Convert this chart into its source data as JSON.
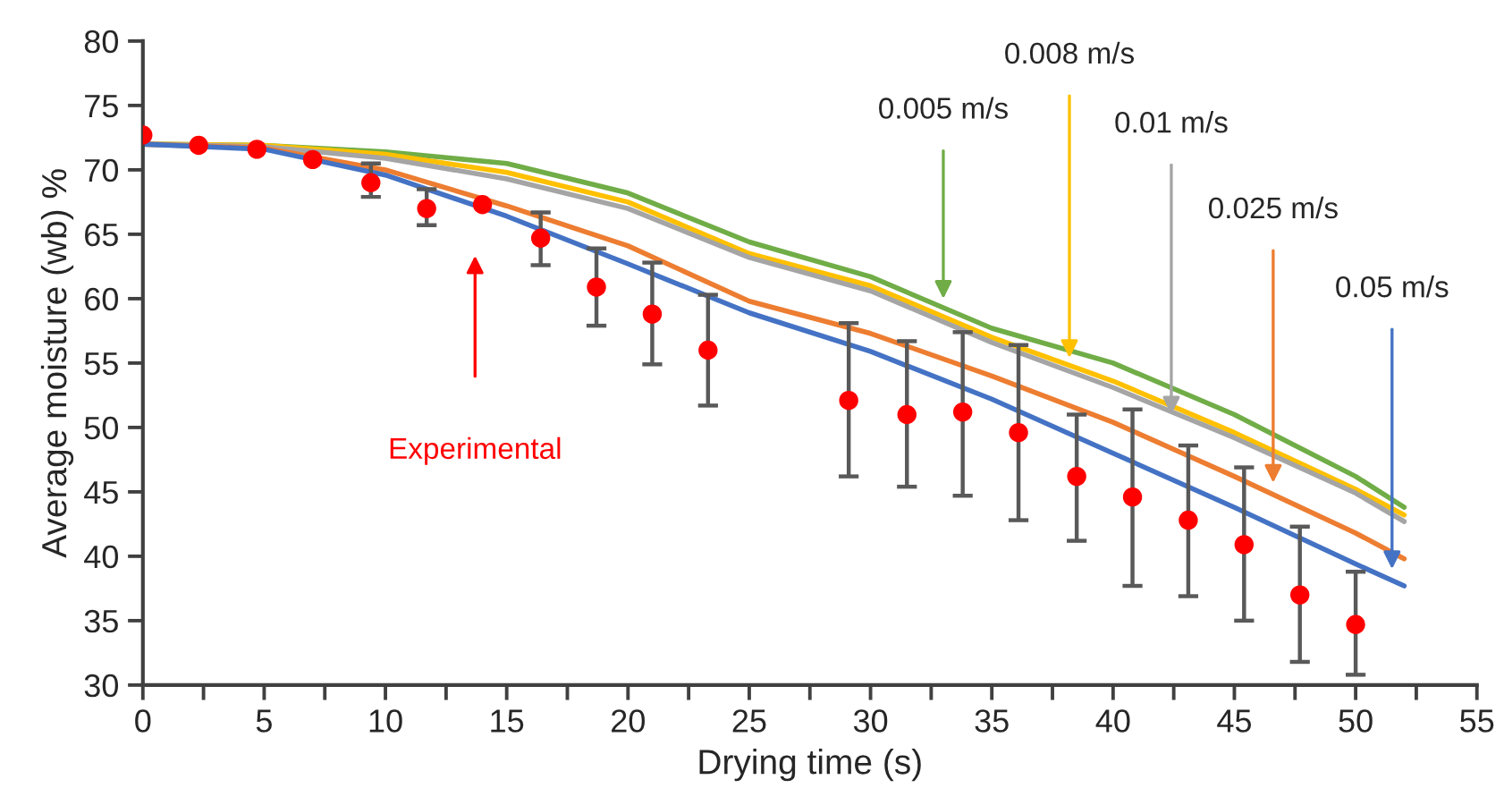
{
  "chart_data": {
    "type": "line",
    "xlabel": "Drying time (s)",
    "ylabel": "Average moisture (wb) %",
    "xlim": [
      0,
      55
    ],
    "ylim": [
      30,
      80
    ],
    "xticks": [
      0,
      {
        "value": 2.5,
        "label": null
      },
      5,
      {
        "value": 7.5,
        "label": null
      },
      10,
      {
        "value": 12.5,
        "label": null
      },
      15,
      {
        "value": 17.5,
        "label": null
      },
      20,
      {
        "value": 22.5,
        "label": null
      },
      25,
      {
        "value": 27.5,
        "label": null
      },
      30,
      {
        "value": 32.5,
        "label": null
      },
      35,
      {
        "value": 37.5,
        "label": null
      },
      40,
      {
        "value": 42.5,
        "label": null
      },
      45,
      {
        "value": 47.5,
        "label": null
      },
      50,
      {
        "value": 52.5,
        "label": null
      },
      55
    ],
    "yticks": [
      30,
      35,
      40,
      45,
      50,
      55,
      60,
      65,
      70,
      75,
      80
    ],
    "series": [
      {
        "color": "#70ad47",
        "x": [
          0,
          5,
          10,
          15,
          20,
          25,
          30,
          35,
          40,
          45,
          50,
          52
        ],
        "values": [
          72.0,
          71.9,
          71.4,
          70.5,
          68.2,
          64.4,
          61.7,
          57.7,
          55.0,
          51.0,
          46.2,
          43.8
        ]
      },
      {
        "color": "#ffc000",
        "x": [
          0,
          5,
          10,
          15,
          20,
          25,
          30,
          35,
          40,
          45,
          50,
          52
        ],
        "values": [
          72.0,
          71.9,
          71.2,
          69.8,
          67.5,
          63.5,
          61.0,
          57.0,
          53.6,
          49.6,
          45.2,
          43.2
        ]
      },
      {
        "color": "#a5a5a5",
        "x": [
          0,
          5,
          10,
          15,
          20,
          25,
          30,
          35,
          40,
          45,
          50,
          52
        ],
        "values": [
          72.0,
          71.8,
          70.9,
          69.3,
          67.0,
          63.2,
          60.6,
          56.6,
          53.1,
          49.2,
          44.9,
          42.7
        ]
      },
      {
        "color": "#ed7d31",
        "x": [
          0,
          5,
          10,
          15,
          20,
          25,
          30,
          35,
          40,
          45,
          50,
          52
        ],
        "values": [
          72.0,
          71.7,
          70.0,
          67.2,
          64.1,
          59.8,
          57.3,
          54.0,
          50.4,
          46.2,
          41.8,
          39.8
        ]
      },
      {
        "color": "#4472c4",
        "x": [
          0,
          5,
          10,
          15,
          20,
          25,
          30,
          35,
          40,
          45,
          50,
          52
        ],
        "values": [
          72.0,
          71.6,
          69.6,
          66.4,
          62.7,
          58.9,
          55.9,
          52.2,
          48.0,
          43.8,
          39.4,
          37.7
        ]
      },
      {
        "type": "scatter",
        "color": "#ff0000",
        "marker": "circle",
        "x": [
          0,
          2.3,
          4.7,
          7.0,
          9.4,
          11.7,
          14.0,
          16.4,
          18.7,
          21.0,
          23.3,
          29.1,
          31.5,
          33.8,
          36.1,
          38.5,
          40.8,
          43.1,
          45.4,
          47.7,
          50.0
        ],
        "values": [
          72.7,
          71.9,
          71.6,
          70.8,
          69.0,
          67.0,
          67.3,
          64.7,
          60.9,
          58.8,
          56.0,
          52.1,
          51.0,
          51.2,
          49.6,
          46.2,
          44.6,
          42.8,
          40.9,
          37.0,
          34.7
        ],
        "errors": [
          null,
          null,
          null,
          null,
          [
            67.9,
            70.5
          ],
          [
            65.7,
            68.5
          ],
          null,
          [
            62.6,
            66.7
          ],
          [
            57.9,
            63.9
          ],
          [
            54.9,
            62.8
          ],
          [
            51.7,
            60.3
          ],
          [
            46.2,
            58.1
          ],
          [
            45.4,
            56.7
          ],
          [
            44.7,
            57.4
          ],
          [
            42.8,
            56.4
          ],
          [
            41.2,
            51.0
          ],
          [
            37.7,
            51.4
          ],
          [
            36.9,
            48.6
          ],
          [
            35.0,
            46.9
          ],
          [
            31.8,
            42.3
          ],
          [
            30.8,
            38.8
          ]
        ]
      }
    ],
    "annotations": [
      {
        "text": "0.005 m/s",
        "x": 33.0,
        "y": 60.0
      },
      {
        "text": "0.008 m/s",
        "x": 38.2,
        "y": 55.4
      },
      {
        "text": "0.01 m/s",
        "x": 42.4,
        "y": 51.0
      },
      {
        "text": "0.025 m/s",
        "x": 46.6,
        "y": 45.7
      },
      {
        "text": "0.05 m/s",
        "x": 51.5,
        "y": 39.0
      },
      "Experimental"
    ]
  }
}
